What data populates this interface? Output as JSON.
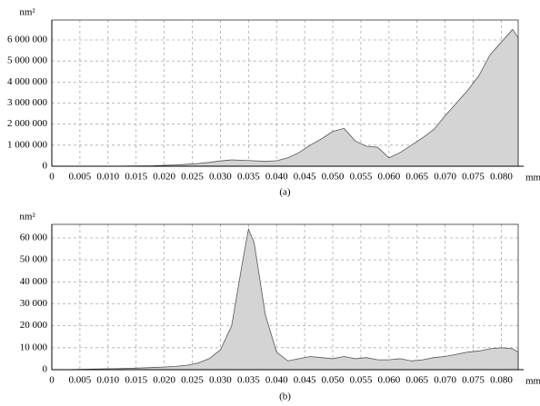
{
  "chart_data": [
    {
      "type": "area",
      "caption": "(a)",
      "ylabel": "nm²",
      "xlabel": "mm",
      "color": "#d4d4d4",
      "line_color": "#555555",
      "grid": true,
      "x": [
        0,
        0.002,
        0.004,
        0.006,
        0.008,
        0.01,
        0.012,
        0.014,
        0.016,
        0.018,
        0.02,
        0.022,
        0.024,
        0.026,
        0.028,
        0.03,
        0.032,
        0.034,
        0.036,
        0.038,
        0.04,
        0.042,
        0.044,
        0.046,
        0.048,
        0.05,
        0.052,
        0.054,
        0.056,
        0.058,
        0.06,
        0.062,
        0.064,
        0.066,
        0.068,
        0.07,
        0.072,
        0.074,
        0.076,
        0.078,
        0.08,
        0.082,
        0.083
      ],
      "values": [
        0,
        0,
        0,
        0,
        0,
        5000,
        5000,
        10000,
        15000,
        20000,
        40000,
        60000,
        90000,
        130000,
        180000,
        250000,
        300000,
        280000,
        260000,
        230000,
        260000,
        400000,
        650000,
        1000000,
        1300000,
        1650000,
        1800000,
        1200000,
        950000,
        900000,
        400000,
        650000,
        1000000,
        1350000,
        1750000,
        2400000,
        3000000,
        3600000,
        4300000,
        5300000,
        5900000,
        6500000,
        6100000
      ],
      "xlim": [
        0,
        0.083
      ],
      "ylim": [
        0,
        6950000
      ],
      "xticks": [
        0,
        0.005,
        {
          "value": 0.01,
          "label": "0.010"
        },
        0.015,
        {
          "value": 0.02,
          "label": "0.020"
        },
        0.025,
        {
          "value": 0.03,
          "label": "0.030"
        },
        0.035,
        {
          "value": 0.04,
          "label": "0.040"
        },
        0.045,
        {
          "value": 0.05,
          "label": "0.050"
        },
        0.055,
        {
          "value": 0.06,
          "label": "0.060"
        },
        0.065,
        {
          "value": 0.07,
          "label": "0.070"
        },
        0.075,
        {
          "value": 0.08,
          "label": "0.080"
        }
      ],
      "yticks": [
        0,
        {
          "value": 1000000,
          "label": "1 000 000"
        },
        {
          "value": 2000000,
          "label": "2 000 000"
        },
        {
          "value": 3000000,
          "label": "3 000 000"
        },
        {
          "value": 4000000,
          "label": "4 000 000"
        },
        {
          "value": 5000000,
          "label": "5 000 000"
        },
        {
          "value": 6000000,
          "label": "6 000 000"
        }
      ]
    },
    {
      "type": "area",
      "caption": "(b)",
      "ylabel": "nm²",
      "xlabel": "mm",
      "color": "#d4d4d4",
      "line_color": "#555555",
      "grid": true,
      "x": [
        0,
        0.002,
        0.004,
        0.006,
        0.008,
        0.01,
        0.012,
        0.014,
        0.016,
        0.018,
        0.02,
        0.022,
        0.024,
        0.026,
        0.028,
        0.03,
        0.032,
        0.034,
        0.035,
        0.036,
        0.038,
        0.04,
        0.042,
        0.044,
        0.046,
        0.048,
        0.05,
        0.052,
        0.054,
        0.056,
        0.058,
        0.06,
        0.062,
        0.064,
        0.066,
        0.068,
        0.07,
        0.072,
        0.074,
        0.076,
        0.078,
        0.08,
        0.082,
        0.083
      ],
      "values": [
        0,
        0,
        100,
        200,
        300,
        400,
        500,
        600,
        800,
        1000,
        1200,
        1500,
        2000,
        3000,
        5000,
        9000,
        20000,
        50000,
        64000,
        58000,
        25000,
        8000,
        4000,
        5000,
        6000,
        5500,
        5000,
        6000,
        5000,
        5500,
        4500,
        4500,
        5000,
        4000,
        4500,
        5500,
        6000,
        7000,
        8000,
        8500,
        9500,
        10000,
        9500,
        8000
      ],
      "xlim": [
        0,
        0.083
      ],
      "ylim": [
        0,
        66200
      ],
      "xticks": [
        0,
        0.005,
        {
          "value": 0.01,
          "label": "0.010"
        },
        0.015,
        {
          "value": 0.02,
          "label": "0.020"
        },
        0.025,
        {
          "value": 0.03,
          "label": "0.030"
        },
        0.035,
        {
          "value": 0.04,
          "label": "0.040"
        },
        0.045,
        {
          "value": 0.05,
          "label": "0.050"
        },
        0.055,
        {
          "value": 0.06,
          "label": "0.060"
        },
        0.065,
        {
          "value": 0.07,
          "label": "0.070"
        },
        0.075,
        {
          "value": 0.08,
          "label": "0.080"
        }
      ],
      "yticks": [
        0,
        {
          "value": 10000,
          "label": "10 000"
        },
        {
          "value": 20000,
          "label": "20 000"
        },
        {
          "value": 30000,
          "label": "30 000"
        },
        {
          "value": 40000,
          "label": "40 000"
        },
        {
          "value": 50000,
          "label": "50 000"
        },
        {
          "value": 60000,
          "label": "60 000"
        }
      ]
    }
  ]
}
